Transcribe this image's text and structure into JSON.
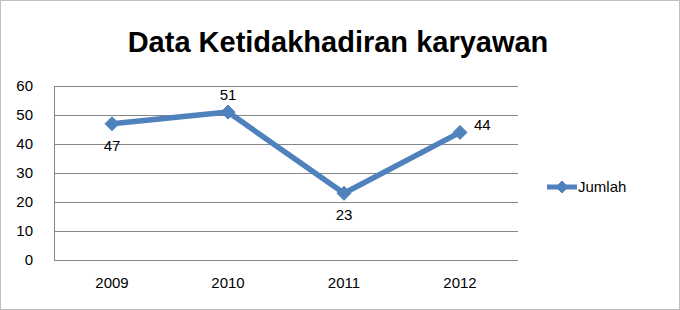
{
  "chart_data": {
    "type": "line",
    "title": "Data Ketidakhadiran karyawan",
    "categories": [
      "2009",
      "2010",
      "2011",
      "2012"
    ],
    "series": [
      {
        "name": "Jumlah",
        "color": "#4f81bd",
        "values": [
          47,
          51,
          23,
          44
        ],
        "marker": "diamond"
      }
    ],
    "ylim": [
      0,
      60
    ],
    "yticks": [
      0,
      10,
      20,
      30,
      40,
      50,
      60
    ],
    "grid": true,
    "data_labels": true,
    "legend": "right"
  }
}
